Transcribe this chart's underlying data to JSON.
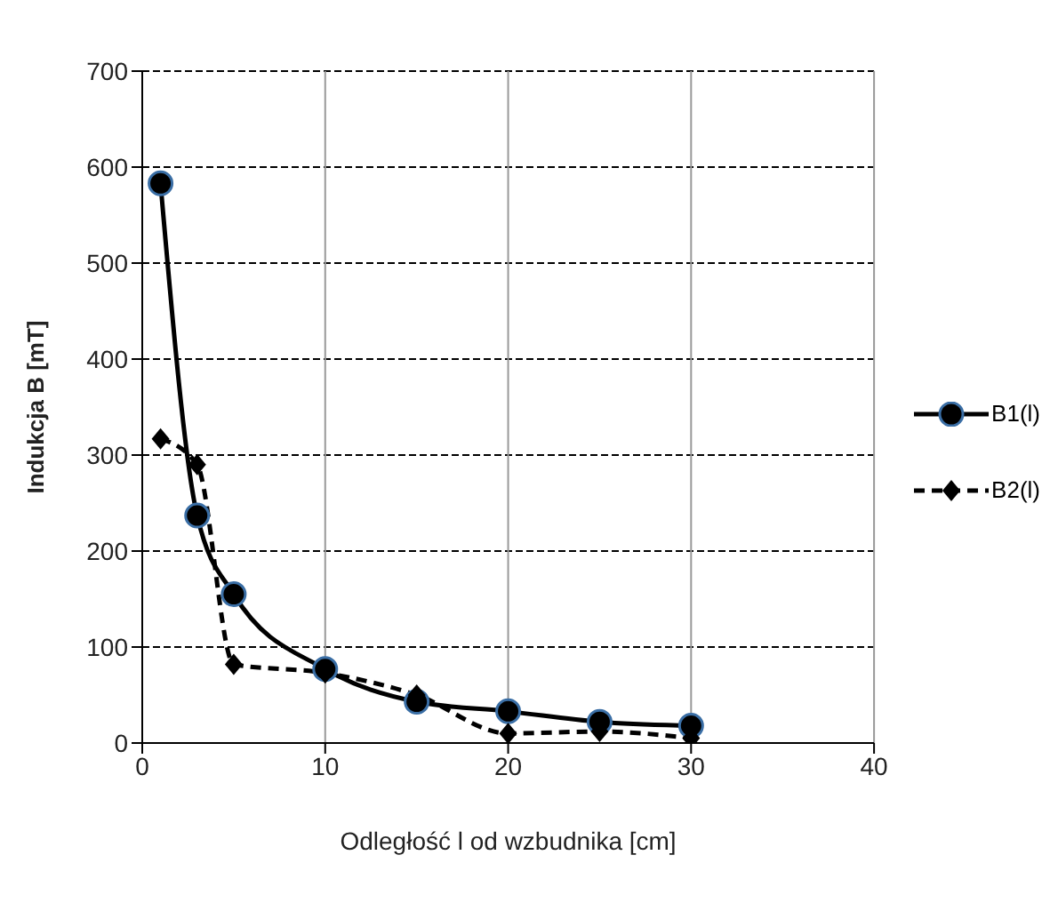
{
  "chart_data": {
    "type": "line",
    "xlabel": "Odległość l od wzbudnika [cm]",
    "ylabel": "Indukcja  B [mT]",
    "x": [
      1,
      3,
      5,
      10,
      15,
      20,
      25,
      30
    ],
    "series": [
      {
        "name": "B1(l)",
        "color": "#000000",
        "values": [
          583,
          237,
          155,
          77,
          43,
          33,
          22,
          18
        ],
        "marker": "circle",
        "line_style": "solid"
      },
      {
        "name": "B2(l)",
        "color": "#000000",
        "values": [
          317,
          290,
          82,
          73,
          50,
          10,
          12,
          5
        ],
        "marker": "diamond",
        "line_style": "dashed"
      }
    ],
    "xlim": [
      0,
      40
    ],
    "xticks": [
      0,
      10,
      20,
      30,
      40
    ],
    "ylim": [
      0,
      700
    ],
    "yticks": [
      0,
      100,
      200,
      300,
      400,
      500,
      600,
      700
    ],
    "grid": true,
    "legend": "right"
  }
}
